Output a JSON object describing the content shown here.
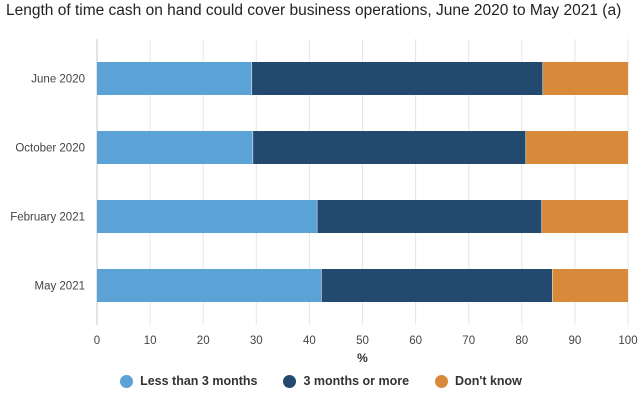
{
  "chart_data": {
    "type": "bar",
    "orientation": "horizontal",
    "stacked": true,
    "title": "Length of time cash on hand could cover business operations, June 2020 to May 2021 (a)",
    "xlabel": "%",
    "ylabel": "",
    "xlim": [
      0,
      100
    ],
    "xticks": [
      "0",
      "10",
      "20",
      "30",
      "40",
      "50",
      "60",
      "70",
      "80",
      "90",
      "100"
    ],
    "grid": true,
    "legend_position": "bottom",
    "categories": [
      "June 2020",
      "October 2020",
      "February 2021",
      "May 2021"
    ],
    "series": [
      {
        "name": "Less than 3 months",
        "color": "#5ba3d6",
        "values": [
          29.2,
          29.4,
          41.5,
          42.3
        ]
      },
      {
        "name": "3 months or more",
        "color": "#234a6e",
        "values": [
          54.8,
          51.4,
          42.3,
          43.5
        ]
      },
      {
        "name": "Don't know",
        "color": "#d88a3a",
        "values": [
          16.0,
          19.2,
          16.2,
          14.2
        ]
      }
    ]
  }
}
